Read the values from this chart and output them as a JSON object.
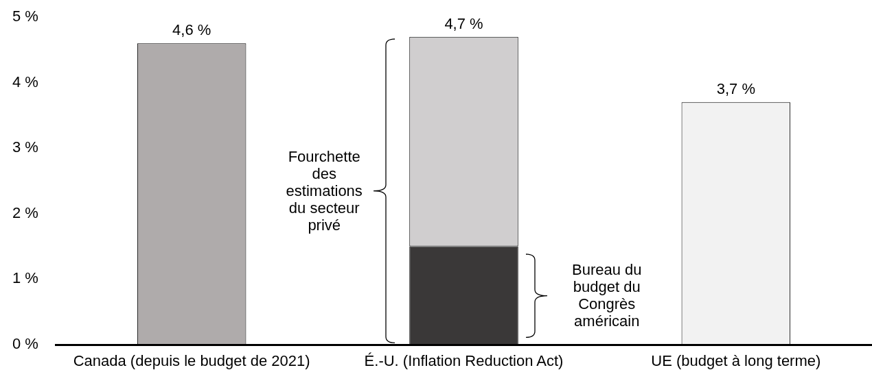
{
  "chart_data": {
    "type": "bar",
    "stacked": true,
    "categories": [
      "Canada (depuis le budget de 2021)",
      "É.-U. (Inflation Reduction Act)",
      "UE (budget à long terme)"
    ],
    "series": [
      {
        "values": [
          4.6,
          1.5,
          3.7
        ],
        "colors": [
          "#afabab",
          "#3a3838",
          "#f2f2f2"
        ]
      },
      {
        "values": [
          null,
          3.2,
          null
        ],
        "color": "#d0cecf"
      }
    ],
    "totals": [
      "4,6 %",
      "4,7 %",
      "3,7 %"
    ],
    "ylim": [
      0,
      5
    ],
    "yticks": [
      {
        "value": 0,
        "label": "0 %"
      },
      {
        "value": 1,
        "label": "1 %"
      },
      {
        "value": 2,
        "label": "2 %"
      },
      {
        "value": 3,
        "label": "3 %"
      },
      {
        "value": 4,
        "label": "4 %"
      },
      {
        "value": 5,
        "label": "5 %"
      }
    ],
    "annotations": [
      "Fourchette des estimations du secteur privé",
      "Bureau du budget du Congrès américain"
    ]
  }
}
